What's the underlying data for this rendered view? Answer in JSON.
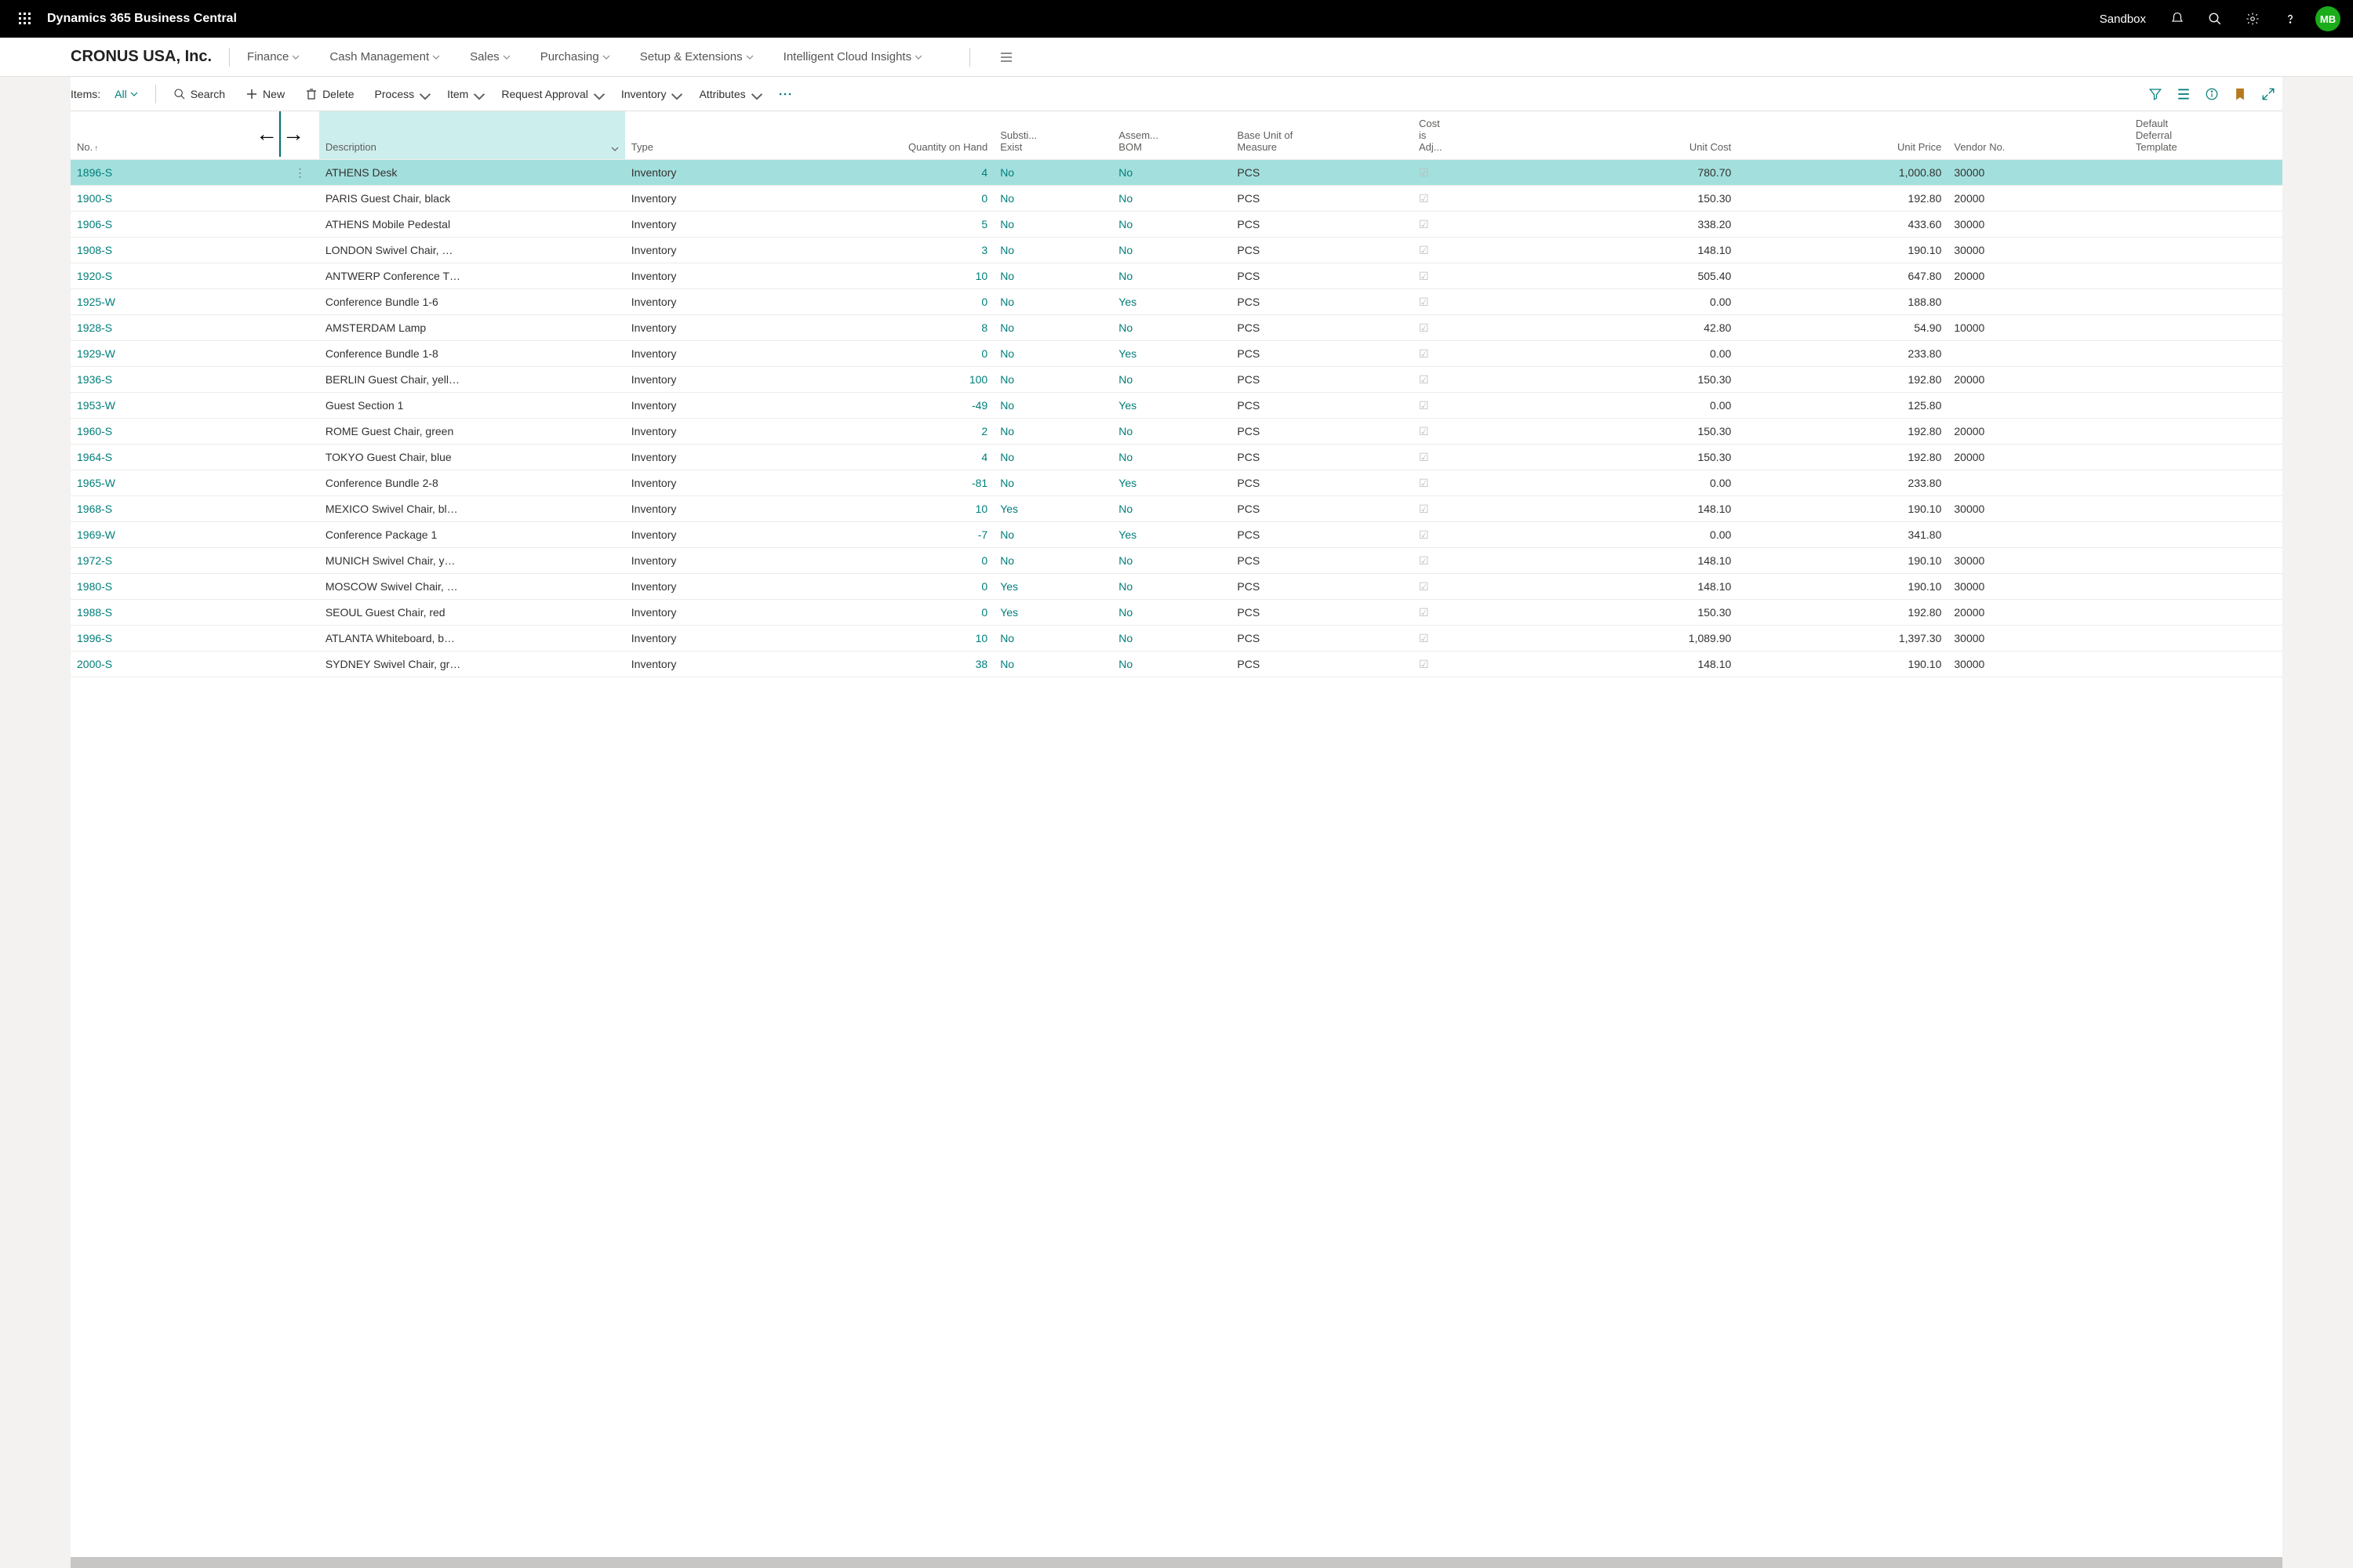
{
  "top": {
    "app_title": "Dynamics 365 Business Central",
    "environment": "Sandbox",
    "avatar_initials": "MB"
  },
  "nav": {
    "company": "CRONUS USA, Inc.",
    "items": [
      "Finance",
      "Cash Management",
      "Sales",
      "Purchasing",
      "Setup & Extensions",
      "Intelligent Cloud Insights"
    ]
  },
  "toolbar": {
    "list_label": "Items:",
    "view": "All",
    "actions": {
      "search": "Search",
      "new": "New",
      "delete": "Delete",
      "process": "Process",
      "item": "Item",
      "request_approval": "Request Approval",
      "inventory": "Inventory",
      "attributes": "Attributes"
    }
  },
  "columns": {
    "no": "No.",
    "description": "Description",
    "type": "Type",
    "qty_on_hand": "Quantity on Hand",
    "substi_exist": "Substi...\nExist",
    "assem_bom": "Assem...\nBOM",
    "base_uom": "Base Unit of Measure",
    "cost_adj": "Cost\nis\nAdj...",
    "unit_cost": "Unit Cost",
    "unit_price": "Unit Price",
    "vendor_no": "Vendor No.",
    "default_deferral": "Default\nDeferral\nTemplate"
  },
  "rows": [
    {
      "no": "1896-S",
      "desc": "ATHENS Desk",
      "type": "Inventory",
      "qty": "4",
      "sub": "No",
      "asm": "No",
      "uom": "PCS",
      "adj": true,
      "cost": "780.70",
      "price": "1,000.80",
      "vendor": "30000",
      "selected": true
    },
    {
      "no": "1900-S",
      "desc": "PARIS Guest Chair, black",
      "type": "Inventory",
      "qty": "0",
      "sub": "No",
      "asm": "No",
      "uom": "PCS",
      "adj": true,
      "cost": "150.30",
      "price": "192.80",
      "vendor": "20000"
    },
    {
      "no": "1906-S",
      "desc": "ATHENS Mobile Pedestal",
      "type": "Inventory",
      "qty": "5",
      "sub": "No",
      "asm": "No",
      "uom": "PCS",
      "adj": true,
      "cost": "338.20",
      "price": "433.60",
      "vendor": "30000"
    },
    {
      "no": "1908-S",
      "desc": "LONDON Swivel Chair, …",
      "type": "Inventory",
      "qty": "3",
      "sub": "No",
      "asm": "No",
      "uom": "PCS",
      "adj": true,
      "cost": "148.10",
      "price": "190.10",
      "vendor": "30000"
    },
    {
      "no": "1920-S",
      "desc": "ANTWERP Conference T…",
      "type": "Inventory",
      "qty": "10",
      "sub": "No",
      "asm": "No",
      "uom": "PCS",
      "adj": true,
      "cost": "505.40",
      "price": "647.80",
      "vendor": "20000"
    },
    {
      "no": "1925-W",
      "desc": "Conference Bundle 1-6",
      "type": "Inventory",
      "qty": "0",
      "sub": "No",
      "asm": "Yes",
      "uom": "PCS",
      "adj": true,
      "cost": "0.00",
      "price": "188.80",
      "vendor": ""
    },
    {
      "no": "1928-S",
      "desc": "AMSTERDAM Lamp",
      "type": "Inventory",
      "qty": "8",
      "sub": "No",
      "asm": "No",
      "uom": "PCS",
      "adj": true,
      "cost": "42.80",
      "price": "54.90",
      "vendor": "10000"
    },
    {
      "no": "1929-W",
      "desc": "Conference Bundle 1-8",
      "type": "Inventory",
      "qty": "0",
      "sub": "No",
      "asm": "Yes",
      "uom": "PCS",
      "adj": true,
      "cost": "0.00",
      "price": "233.80",
      "vendor": ""
    },
    {
      "no": "1936-S",
      "desc": "BERLIN Guest Chair, yell…",
      "type": "Inventory",
      "qty": "100",
      "sub": "No",
      "asm": "No",
      "uom": "PCS",
      "adj": true,
      "cost": "150.30",
      "price": "192.80",
      "vendor": "20000"
    },
    {
      "no": "1953-W",
      "desc": "Guest Section 1",
      "type": "Inventory",
      "qty": "-49",
      "sub": "No",
      "asm": "Yes",
      "uom": "PCS",
      "adj": true,
      "cost": "0.00",
      "price": "125.80",
      "vendor": ""
    },
    {
      "no": "1960-S",
      "desc": "ROME Guest Chair, green",
      "type": "Inventory",
      "qty": "2",
      "sub": "No",
      "asm": "No",
      "uom": "PCS",
      "adj": true,
      "cost": "150.30",
      "price": "192.80",
      "vendor": "20000"
    },
    {
      "no": "1964-S",
      "desc": "TOKYO Guest Chair, blue",
      "type": "Inventory",
      "qty": "4",
      "sub": "No",
      "asm": "No",
      "uom": "PCS",
      "adj": true,
      "cost": "150.30",
      "price": "192.80",
      "vendor": "20000"
    },
    {
      "no": "1965-W",
      "desc": "Conference Bundle 2-8",
      "type": "Inventory",
      "qty": "-81",
      "sub": "No",
      "asm": "Yes",
      "uom": "PCS",
      "adj": true,
      "cost": "0.00",
      "price": "233.80",
      "vendor": ""
    },
    {
      "no": "1968-S",
      "desc": "MEXICO Swivel Chair, bl…",
      "type": "Inventory",
      "qty": "10",
      "sub": "Yes",
      "asm": "No",
      "uom": "PCS",
      "adj": true,
      "cost": "148.10",
      "price": "190.10",
      "vendor": "30000"
    },
    {
      "no": "1969-W",
      "desc": "Conference Package 1",
      "type": "Inventory",
      "qty": "-7",
      "sub": "No",
      "asm": "Yes",
      "uom": "PCS",
      "adj": true,
      "cost": "0.00",
      "price": "341.80",
      "vendor": ""
    },
    {
      "no": "1972-S",
      "desc": "MUNICH Swivel Chair, y…",
      "type": "Inventory",
      "qty": "0",
      "sub": "No",
      "asm": "No",
      "uom": "PCS",
      "adj": true,
      "cost": "148.10",
      "price": "190.10",
      "vendor": "30000"
    },
    {
      "no": "1980-S",
      "desc": "MOSCOW Swivel Chair, …",
      "type": "Inventory",
      "qty": "0",
      "sub": "Yes",
      "asm": "No",
      "uom": "PCS",
      "adj": true,
      "cost": "148.10",
      "price": "190.10",
      "vendor": "30000"
    },
    {
      "no": "1988-S",
      "desc": "SEOUL Guest Chair, red",
      "type": "Inventory",
      "qty": "0",
      "sub": "Yes",
      "asm": "No",
      "uom": "PCS",
      "adj": true,
      "cost": "150.30",
      "price": "192.80",
      "vendor": "20000"
    },
    {
      "no": "1996-S",
      "desc": "ATLANTA Whiteboard, b…",
      "type": "Inventory",
      "qty": "10",
      "sub": "No",
      "asm": "No",
      "uom": "PCS",
      "adj": true,
      "cost": "1,089.90",
      "price": "1,397.30",
      "vendor": "30000"
    },
    {
      "no": "2000-S",
      "desc": "SYDNEY Swivel Chair, gr…",
      "type": "Inventory",
      "qty": "38",
      "sub": "No",
      "asm": "No",
      "uom": "PCS",
      "adj": true,
      "cost": "148.10",
      "price": "190.10",
      "vendor": "30000"
    }
  ],
  "colors": {
    "accent": "#007e7a",
    "selected_row": "#a3e0dd",
    "header_highlight": "#cceeed",
    "avatar_bg": "#1aac1a"
  }
}
